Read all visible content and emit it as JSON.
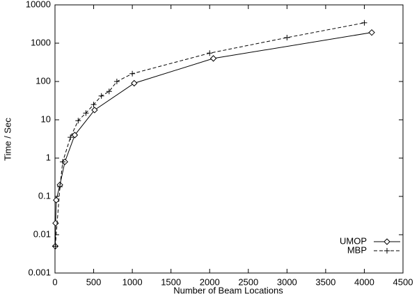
{
  "chart_data": {
    "type": "line",
    "xlabel": "Number of Beam Locations",
    "ylabel": "Time / Sec",
    "xlim": [
      0,
      4500
    ],
    "xticks": [
      0,
      500,
      1000,
      1500,
      2000,
      2500,
      3000,
      3500,
      4000,
      4500
    ],
    "ylim": [
      0.001,
      10000
    ],
    "yticks": [
      0.001,
      0.01,
      0.1,
      1,
      10,
      100,
      1000,
      10000
    ],
    "yscale": "log",
    "legend": "lower right",
    "series": [
      {
        "name": "UMOP",
        "color": "#000000",
        "dash": "solid",
        "marker": "diamond",
        "x": [
          4,
          8,
          16,
          64,
          128,
          256,
          512,
          1024,
          2048,
          4096
        ],
        "values": [
          0.005,
          0.02,
          0.08,
          0.2,
          0.8,
          4,
          18,
          90,
          400,
          1900
        ]
      },
      {
        "name": "MBP",
        "color": "#000000",
        "dash": "dashed",
        "marker": "plus",
        "x": [
          4,
          64,
          100,
          200,
          300,
          400,
          500,
          600,
          700,
          800,
          1000,
          2000,
          3000,
          4000
        ],
        "values": [
          0.005,
          0.18,
          0.8,
          3.5,
          9.5,
          15,
          25,
          42,
          55,
          100,
          160,
          550,
          1400,
          3400
        ]
      }
    ]
  }
}
